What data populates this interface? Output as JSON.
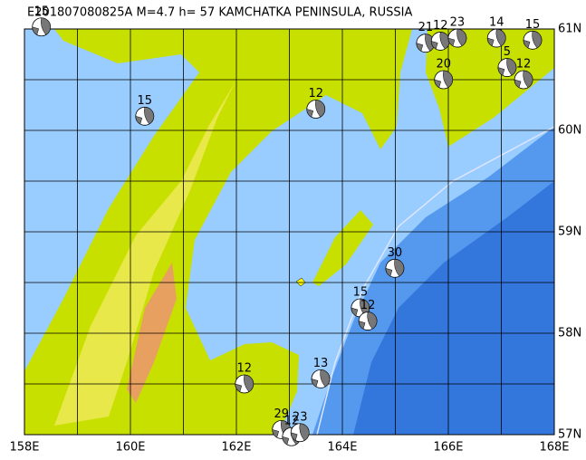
{
  "chart_data": {
    "type": "focal-map",
    "title": "E201807080825A M=4.7 h= 57 KAMCHATKA PENINSULA, RUSSIA",
    "xlim": [
      158,
      168
    ],
    "ylim": [
      57,
      61
    ],
    "xticks": [
      {
        "value": 158,
        "label": "158E"
      },
      {
        "value": 160,
        "label": "160E"
      },
      {
        "value": 162,
        "label": "162E"
      },
      {
        "value": 164,
        "label": "164E"
      },
      {
        "value": 166,
        "label": "166E"
      },
      {
        "value": 168,
        "label": "168E"
      }
    ],
    "yticks": [
      {
        "value": 57,
        "label": "57N"
      },
      {
        "value": 58,
        "label": "58N"
      },
      {
        "value": 59,
        "label": "59N"
      },
      {
        "value": 60,
        "label": "60N"
      },
      {
        "value": 61,
        "label": "61N"
      }
    ],
    "grid_x": [
      159,
      161,
      163,
      165,
      167
    ],
    "grid_y": [
      57.5,
      58.5,
      59.5,
      60.5
    ],
    "events": [
      {
        "lon": 158.32,
        "lat": 61.02,
        "depth": 15
      },
      {
        "lon": 160.27,
        "lat": 60.14,
        "depth": 15
      },
      {
        "lon": 163.5,
        "lat": 60.21,
        "depth": 12
      },
      {
        "lon": 164.99,
        "lat": 58.64,
        "depth": 30
      },
      {
        "lon": 164.34,
        "lat": 58.25,
        "depth": 15
      },
      {
        "lon": 164.48,
        "lat": 58.12,
        "depth": 12
      },
      {
        "lon": 163.59,
        "lat": 57.55,
        "depth": 13
      },
      {
        "lon": 162.15,
        "lat": 57.5,
        "depth": 12
      },
      {
        "lon": 162.85,
        "lat": 57.05,
        "depth": 29
      },
      {
        "lon": 163.04,
        "lat": 56.98,
        "depth": 12
      },
      {
        "lon": 163.2,
        "lat": 57.02,
        "depth": 23
      },
      {
        "lon": 165.57,
        "lat": 60.86,
        "depth": 21
      },
      {
        "lon": 165.85,
        "lat": 60.88,
        "depth": 12
      },
      {
        "lon": 166.17,
        "lat": 60.91,
        "depth": 23
      },
      {
        "lon": 165.91,
        "lat": 60.5,
        "depth": 20
      },
      {
        "lon": 166.91,
        "lat": 60.91,
        "depth": 14
      },
      {
        "lon": 167.59,
        "lat": 60.89,
        "depth": 15
      },
      {
        "lon": 167.11,
        "lat": 60.62,
        "depth": 5
      },
      {
        "lon": 167.42,
        "lat": 60.5,
        "depth": 12
      }
    ]
  }
}
